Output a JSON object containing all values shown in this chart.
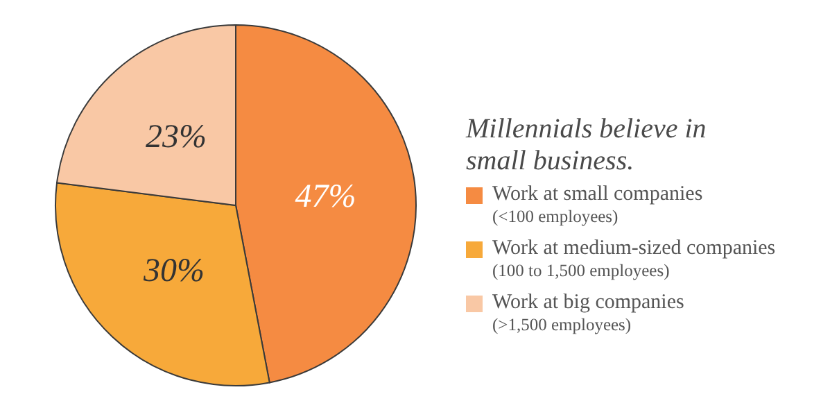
{
  "chart_data": {
    "type": "pie",
    "title": "Millennials believe in\nsmall business.",
    "categories": [
      "Work at small companies\n(<100 employees)",
      "Work at medium-sized companies\n(100 to 1,500 employees)",
      "Work at big companies\n(>1,500 employees)"
    ],
    "values": [
      47,
      30,
      23
    ],
    "value_labels": [
      "47%",
      "30%",
      "23%"
    ],
    "colors": [
      "#f58b42",
      "#f7a93a",
      "#f9c8a5"
    ],
    "legend": "right"
  }
}
